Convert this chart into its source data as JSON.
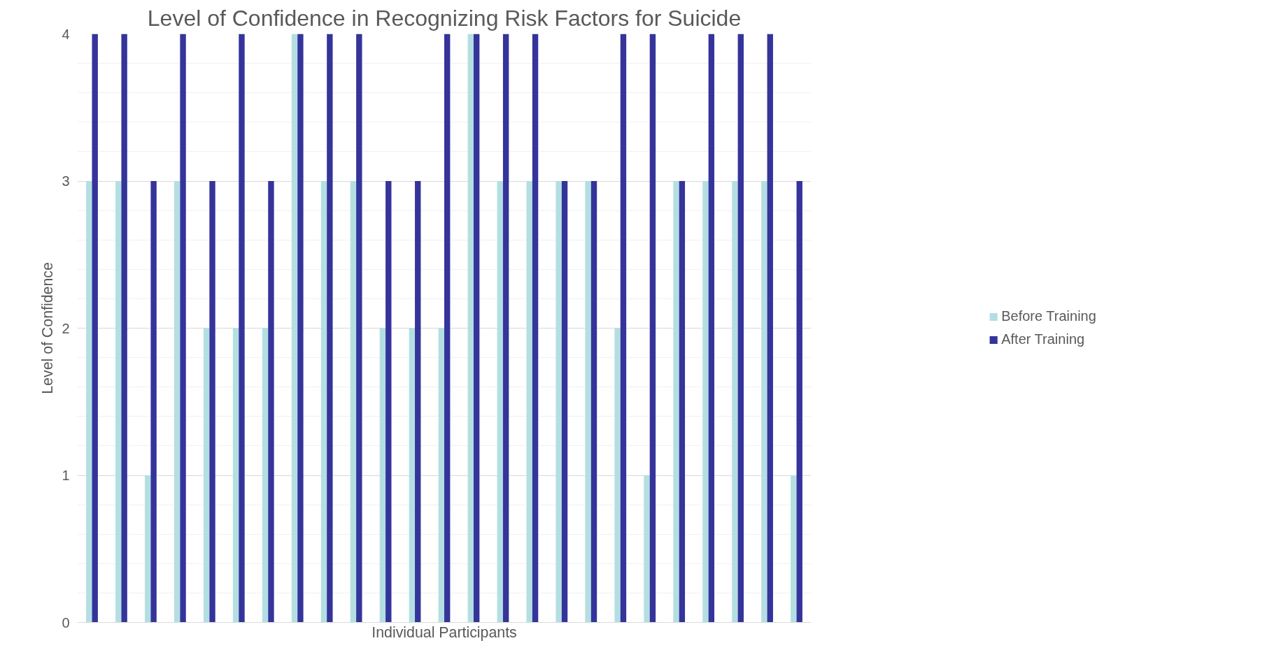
{
  "chart_data": {
    "type": "bar",
    "title": "Level of Confidence in Recognizing Risk Factors for Suicide",
    "xlabel": "Individual Participants",
    "ylabel": "Level of Confidence",
    "categories": [
      null,
      null,
      null,
      null,
      null,
      null,
      null,
      null,
      null,
      null,
      null,
      null,
      null,
      null,
      null,
      null,
      null,
      null,
      null,
      null,
      null,
      null,
      null,
      null,
      null
    ],
    "series": [
      {
        "name": "Before Training",
        "color": "#b4dfe2",
        "values": [
          3,
          3,
          1,
          3,
          2,
          2,
          2,
          4,
          3,
          3,
          2,
          2,
          2,
          4,
          3,
          3,
          3,
          3,
          2,
          1,
          3,
          3,
          3,
          3,
          1
        ]
      },
      {
        "name": "After Training",
        "color": "#35349b",
        "values": [
          4,
          4,
          3,
          4,
          3,
          4,
          3,
          4,
          4,
          4,
          3,
          3,
          4,
          4,
          4,
          4,
          3,
          3,
          4,
          4,
          3,
          4,
          4,
          4,
          3
        ]
      }
    ],
    "ylim": [
      0,
      4
    ],
    "yticks": [
      0,
      1,
      2,
      3,
      4
    ],
    "grid": "y",
    "legend": "right"
  }
}
